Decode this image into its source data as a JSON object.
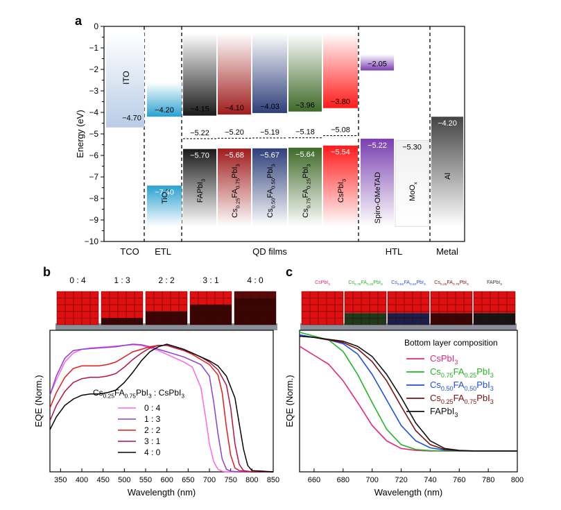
{
  "chart_data": [
    {
      "panel": "a",
      "type": "bar",
      "ylabel": "Energy (eV)",
      "ylim": [
        -10,
        0
      ],
      "yticks": [
        "0",
        "−1",
        "−2",
        "−3",
        "−4",
        "−5",
        "−6",
        "−7",
        "−8",
        "−9",
        "−10"
      ],
      "groups": [
        "TCO",
        "ETL",
        "QD films",
        "HTL",
        "Metal"
      ],
      "materials": [
        {
          "name": "ITO",
          "top": -0.3,
          "bottom": -4.7,
          "level_label": "−4.70",
          "color": "#b9cce6"
        },
        {
          "name": "TiO",
          "sub": "2",
          "cb": -4.2,
          "vb": -7.4,
          "cb_label": "−4.20",
          "vb_label": "−7.40",
          "color": "#2aa0cf"
        },
        {
          "name": "FAPbI",
          "sub": "3",
          "cb": -4.15,
          "vb": -5.7,
          "cb_label": "−4.15",
          "vb_label": "−5.70",
          "mid": -5.22,
          "mid_label": "−5.22",
          "color": "#1a1a1a"
        },
        {
          "name": "Cs0.25FA0.75PbI3",
          "parts": [
            "Cs",
            "0.25",
            "FA",
            "0.75",
            "PbI",
            "3"
          ],
          "cb": -4.1,
          "vb": -5.68,
          "cb_label": "−4.10",
          "vb_label": "−5.68",
          "mid": -5.2,
          "mid_label": "−5.20",
          "color": "#a01c1c"
        },
        {
          "name": "Cs0.50FA0.50PbI3",
          "parts": [
            "Cs",
            "0.50",
            "FA",
            "0.50",
            "PbI",
            "3"
          ],
          "cb": -4.03,
          "vb": -5.67,
          "cb_label": "−4.03",
          "vb_label": "−5.67",
          "mid": -5.19,
          "mid_label": "−5.19",
          "color": "#2e3f7a"
        },
        {
          "name": "Cs0.75FA0.25PbI3",
          "parts": [
            "Cs",
            "0.75",
            "FA",
            "0.25",
            "PbI",
            "3"
          ],
          "cb": -3.96,
          "vb": -5.64,
          "cb_label": "−3.96",
          "vb_label": "−5.64",
          "mid": -5.18,
          "mid_label": "−5.18",
          "color": "#3f6a2a"
        },
        {
          "name": "CsPbI",
          "sub": "3",
          "cb": -3.8,
          "vb": -5.54,
          "cb_label": "−3.80",
          "vb_label": "−5.54",
          "mid": -5.08,
          "mid_label": "−5.08",
          "color": "#ff1a1a"
        },
        {
          "name": "Spiro-OMeTAD",
          "cb": -2.05,
          "vb": -5.22,
          "cb_label": "−2.05",
          "vb_label": "−5.22",
          "color": "#7a3fb0"
        },
        {
          "name": "MoO",
          "sub": "x",
          "top": -5.3,
          "bottom": -9.3,
          "level_label": "−5.30",
          "color": "#e8e8e8"
        },
        {
          "name": "Al",
          "top": -4.2,
          "bottom": -9.3,
          "level_label": "−4.20",
          "color": "#555555"
        }
      ]
    },
    {
      "panel": "b",
      "type": "line",
      "xlabel": "Wavelength (nm)",
      "ylabel": "EQE (Norm.)",
      "xlim": [
        325,
        850
      ],
      "xticks": [
        350,
        400,
        450,
        500,
        550,
        600,
        650,
        700,
        750,
        800,
        850
      ],
      "legend_title_parts": [
        "Cs",
        "0.25",
        "FA",
        "0.75",
        "PbI",
        "3",
        " : CsPbI",
        "3"
      ],
      "header_labels": [
        "0 : 4",
        "1 : 3",
        "2 : 2",
        "3 : 1",
        "4 : 0"
      ],
      "series": [
        {
          "name": "0 : 4",
          "color": "#ff66e0",
          "x": [
            325,
            340,
            360,
            380,
            400,
            420,
            440,
            460,
            480,
            500,
            520,
            540,
            560,
            580,
            600,
            620,
            640,
            660,
            680,
            690,
            700,
            710,
            720,
            730,
            740,
            760,
            800,
            850
          ],
          "y": [
            0.6,
            0.72,
            0.86,
            0.93,
            0.96,
            0.97,
            0.975,
            0.98,
            0.985,
            0.99,
            0.995,
            0.99,
            0.97,
            0.95,
            0.92,
            0.89,
            0.86,
            0.82,
            0.66,
            0.45,
            0.22,
            0.08,
            0.02,
            0.005,
            0,
            0,
            0,
            0
          ]
        },
        {
          "name": "1 : 3",
          "color": "#8a3ed8",
          "x": [
            325,
            340,
            360,
            380,
            400,
            420,
            440,
            460,
            480,
            500,
            520,
            540,
            560,
            580,
            600,
            620,
            640,
            660,
            680,
            700,
            710,
            720,
            730,
            740,
            750,
            770,
            800,
            850
          ],
          "y": [
            0.6,
            0.75,
            0.89,
            0.95,
            0.96,
            0.965,
            0.97,
            0.975,
            0.98,
            0.99,
            1.0,
            0.995,
            0.98,
            0.96,
            0.94,
            0.92,
            0.9,
            0.87,
            0.84,
            0.75,
            0.55,
            0.3,
            0.1,
            0.02,
            0.005,
            0,
            0,
            0
          ]
        },
        {
          "name": "2 : 2",
          "color": "#e81818",
          "x": [
            325,
            340,
            360,
            380,
            400,
            420,
            440,
            460,
            480,
            500,
            520,
            540,
            560,
            580,
            600,
            620,
            640,
            660,
            680,
            700,
            720,
            730,
            740,
            750,
            760,
            770,
            800,
            850
          ],
          "y": [
            0.5,
            0.62,
            0.74,
            0.81,
            0.83,
            0.83,
            0.83,
            0.84,
            0.86,
            0.9,
            0.94,
            0.96,
            0.98,
            0.99,
            0.99,
            0.97,
            0.95,
            0.92,
            0.88,
            0.84,
            0.76,
            0.62,
            0.35,
            0.13,
            0.03,
            0.01,
            0,
            0
          ]
        },
        {
          "name": "3 : 1",
          "color": "#b5123c",
          "x": [
            325,
            340,
            360,
            380,
            400,
            420,
            440,
            460,
            480,
            500,
            520,
            540,
            560,
            580,
            600,
            620,
            640,
            660,
            680,
            700,
            720,
            740,
            750,
            760,
            770,
            780,
            800,
            850
          ],
          "y": [
            0.4,
            0.52,
            0.63,
            0.7,
            0.73,
            0.74,
            0.74,
            0.75,
            0.77,
            0.82,
            0.88,
            0.93,
            0.97,
            0.99,
            0.99,
            0.97,
            0.95,
            0.93,
            0.9,
            0.86,
            0.8,
            0.68,
            0.5,
            0.22,
            0.06,
            0.01,
            0,
            0
          ]
        },
        {
          "name": "4 : 0",
          "color": "#000000",
          "x": [
            325,
            340,
            360,
            380,
            400,
            420,
            440,
            460,
            480,
            500,
            520,
            540,
            560,
            580,
            600,
            620,
            640,
            660,
            680,
            700,
            720,
            740,
            760,
            770,
            780,
            790,
            800,
            850
          ],
          "y": [
            0.33,
            0.43,
            0.52,
            0.57,
            0.6,
            0.61,
            0.61,
            0.62,
            0.64,
            0.7,
            0.78,
            0.87,
            0.94,
            0.98,
            1.0,
            0.98,
            0.96,
            0.93,
            0.9,
            0.87,
            0.83,
            0.75,
            0.58,
            0.38,
            0.18,
            0.05,
            0.01,
            0
          ]
        }
      ]
    },
    {
      "panel": "c",
      "type": "line",
      "xlabel": "Wavelength (nm)",
      "ylabel": "EQE (Norm.)",
      "xlim": [
        650,
        800
      ],
      "xticks": [
        660,
        680,
        700,
        720,
        740,
        760,
        780,
        800
      ],
      "legend_title": "Bottom layer composition",
      "header_labels": [
        {
          "parts": [
            "CsPbI",
            "3"
          ],
          "color": "#e8247a"
        },
        {
          "parts": [
            "Cs",
            "0.75",
            "FA",
            "0.25",
            "PbI",
            "3"
          ],
          "color": "#22b422"
        },
        {
          "parts": [
            "Cs",
            "0.50",
            "FA",
            "0.50",
            "PbI",
            "3"
          ],
          "color": "#1f4fe0"
        },
        {
          "parts": [
            "Cs",
            "0.25",
            "FA",
            "0.75",
            "PbI",
            "3"
          ],
          "color": "#7a1010"
        },
        {
          "parts": [
            "FAPbI",
            "3"
          ],
          "color": "#333333"
        }
      ],
      "series": [
        {
          "name": "CsPbI3",
          "parts": [
            "CsPbI",
            "3"
          ],
          "color": "#e8247a",
          "x": [
            650,
            660,
            670,
            680,
            690,
            700,
            710,
            720,
            730,
            740,
            750,
            800
          ],
          "y": [
            0.82,
            0.75,
            0.68,
            0.55,
            0.38,
            0.2,
            0.08,
            0.02,
            0.005,
            0,
            0,
            0
          ]
        },
        {
          "name": "Cs0.75FA0.25PbI3",
          "parts": [
            "Cs",
            "0.75",
            "FA",
            "0.25",
            "PbI",
            "3"
          ],
          "color": "#22b422",
          "x": [
            650,
            660,
            670,
            680,
            690,
            700,
            710,
            720,
            730,
            740,
            750,
            800
          ],
          "y": [
            0.93,
            0.9,
            0.87,
            0.78,
            0.6,
            0.38,
            0.17,
            0.05,
            0.012,
            0.003,
            0,
            0
          ]
        },
        {
          "name": "Cs0.50FA0.50PbI3",
          "parts": [
            "Cs",
            "0.50",
            "FA",
            "0.50",
            "PbI",
            "3"
          ],
          "color": "#1f4fe0",
          "x": [
            650,
            660,
            670,
            680,
            690,
            700,
            710,
            720,
            730,
            740,
            750,
            760,
            770,
            800
          ],
          "y": [
            0.91,
            0.89,
            0.87,
            0.84,
            0.76,
            0.6,
            0.4,
            0.2,
            0.08,
            0.025,
            0.007,
            0.002,
            0,
            0
          ]
        },
        {
          "name": "Cs0.25FA0.75PbI3",
          "parts": [
            "Cs",
            "0.25",
            "FA",
            "0.75",
            "PbI",
            "3"
          ],
          "color": "#7a1010",
          "x": [
            650,
            660,
            670,
            680,
            690,
            700,
            710,
            720,
            730,
            740,
            750,
            760,
            770,
            800
          ],
          "y": [
            0.9,
            0.89,
            0.87,
            0.85,
            0.8,
            0.7,
            0.55,
            0.35,
            0.16,
            0.05,
            0.012,
            0.003,
            0,
            0
          ]
        },
        {
          "name": "FAPbI3",
          "parts": [
            "FAPbI",
            "3"
          ],
          "color": "#111111",
          "x": [
            650,
            660,
            670,
            680,
            690,
            700,
            710,
            720,
            730,
            740,
            750,
            760,
            770,
            800
          ],
          "y": [
            0.9,
            0.89,
            0.875,
            0.86,
            0.82,
            0.74,
            0.6,
            0.42,
            0.22,
            0.08,
            0.02,
            0.005,
            0.001,
            0
          ]
        }
      ]
    }
  ],
  "panel_labels": {
    "a": "a",
    "b": "b",
    "c": "c"
  }
}
